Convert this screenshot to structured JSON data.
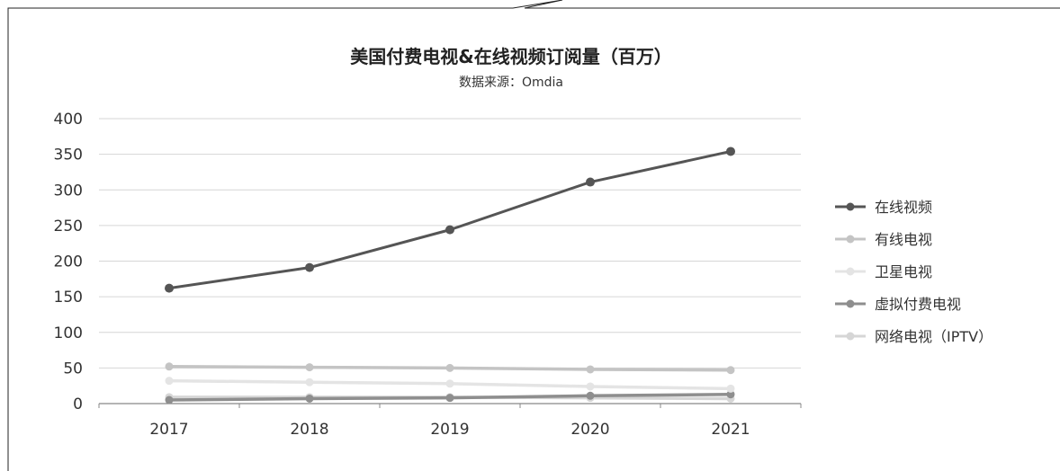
{
  "chart_data": {
    "type": "line",
    "title": "美国付费电视&在线视频订阅量（百万）",
    "subtitle": "数据来源：Omdia",
    "xlabel": "",
    "ylabel": "",
    "categories": [
      "2017",
      "2018",
      "2019",
      "2020",
      "2021"
    ],
    "ylim": [
      0,
      400
    ],
    "yticks": [
      "0",
      "50",
      "100",
      "150",
      "200",
      "250",
      "300",
      "350",
      "400"
    ],
    "grid": true,
    "legend_position": "right",
    "series": [
      {
        "name": "在线视频",
        "values": [
          162,
          191,
          244,
          311,
          354
        ],
        "color": "#555555"
      },
      {
        "name": "有线电视",
        "values": [
          52,
          51,
          50,
          48,
          47
        ],
        "color": "#c4c4c4"
      },
      {
        "name": "卫星电视",
        "values": [
          32,
          30,
          28,
          24,
          21
        ],
        "color": "#e4e4e4"
      },
      {
        "name": "虚拟付费电视",
        "values": [
          5,
          7,
          8,
          11,
          13
        ],
        "color": "#8e8e8e"
      },
      {
        "name": "网络电视（IPTV）",
        "values": [
          9,
          9,
          9,
          8,
          7
        ],
        "color": "#d6d6d6"
      }
    ]
  }
}
